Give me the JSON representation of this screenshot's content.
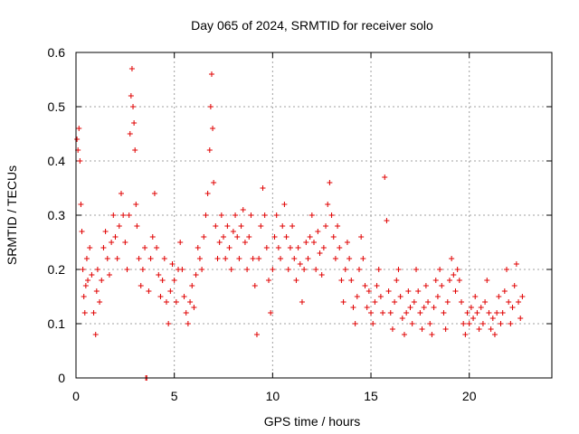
{
  "chart_data": {
    "type": "scatter",
    "title": "Day 065 of 2024, SRMTID for receiver solo",
    "xlabel": "GPS time / hours",
    "ylabel": "SRMTID / TECUs",
    "xlim": [
      0,
      24.2
    ],
    "ylim": [
      0,
      0.6
    ],
    "x_ticks": [
      0,
      5,
      10,
      15,
      20
    ],
    "x_tick_labels": [
      "0",
      "5",
      "10",
      "15",
      "20"
    ],
    "y_ticks": [
      0,
      0.1,
      0.2,
      0.3,
      0.4,
      0.5,
      0.6
    ],
    "y_tick_labels": [
      "0",
      "0.1",
      "0.2",
      "0.3",
      "0.4",
      "0.5",
      "0.6"
    ],
    "grid": true,
    "marker": "+",
    "color": "#e00000",
    "series": [
      {
        "name": "SRMTID",
        "points": [
          [
            0.05,
            0.44
          ],
          [
            0.1,
            0.42
          ],
          [
            0.15,
            0.46
          ],
          [
            0.2,
            0.4
          ],
          [
            0.25,
            0.32
          ],
          [
            0.3,
            0.27
          ],
          [
            0.35,
            0.2
          ],
          [
            0.4,
            0.15
          ],
          [
            0.45,
            0.12
          ],
          [
            0.5,
            0.17
          ],
          [
            0.55,
            0.22
          ],
          [
            0.6,
            0.18
          ],
          [
            0.7,
            0.24
          ],
          [
            0.8,
            0.19
          ],
          [
            0.9,
            0.12
          ],
          [
            1.0,
            0.08
          ],
          [
            1.05,
            0.16
          ],
          [
            1.1,
            0.2
          ],
          [
            1.2,
            0.14
          ],
          [
            1.3,
            0.18
          ],
          [
            1.4,
            0.24
          ],
          [
            1.5,
            0.27
          ],
          [
            1.6,
            0.22
          ],
          [
            1.7,
            0.19
          ],
          [
            1.8,
            0.25
          ],
          [
            1.9,
            0.3
          ],
          [
            2.0,
            0.26
          ],
          [
            2.1,
            0.22
          ],
          [
            2.2,
            0.28
          ],
          [
            2.3,
            0.34
          ],
          [
            2.4,
            0.3
          ],
          [
            2.5,
            0.25
          ],
          [
            2.6,
            0.2
          ],
          [
            2.7,
            0.3
          ],
          [
            2.75,
            0.45
          ],
          [
            2.8,
            0.52
          ],
          [
            2.85,
            0.57
          ],
          [
            2.9,
            0.5
          ],
          [
            2.95,
            0.47
          ],
          [
            3.0,
            0.42
          ],
          [
            3.05,
            0.32
          ],
          [
            3.1,
            0.28
          ],
          [
            3.2,
            0.22
          ],
          [
            3.3,
            0.17
          ],
          [
            3.4,
            0.2
          ],
          [
            3.5,
            0.24
          ],
          [
            3.55,
            0.0
          ],
          [
            3.6,
            0.0
          ],
          [
            3.7,
            0.16
          ],
          [
            3.8,
            0.22
          ],
          [
            3.9,
            0.26
          ],
          [
            4.0,
            0.34
          ],
          [
            4.1,
            0.24
          ],
          [
            4.2,
            0.19
          ],
          [
            4.3,
            0.15
          ],
          [
            4.4,
            0.18
          ],
          [
            4.5,
            0.22
          ],
          [
            4.6,
            0.14
          ],
          [
            4.7,
            0.1
          ],
          [
            4.8,
            0.16
          ],
          [
            4.9,
            0.21
          ],
          [
            5.0,
            0.18
          ],
          [
            5.1,
            0.14
          ],
          [
            5.2,
            0.2
          ],
          [
            5.3,
            0.25
          ],
          [
            5.4,
            0.2
          ],
          [
            5.5,
            0.15
          ],
          [
            5.6,
            0.12
          ],
          [
            5.7,
            0.1
          ],
          [
            5.8,
            0.14
          ],
          [
            5.9,
            0.17
          ],
          [
            6.0,
            0.13
          ],
          [
            6.1,
            0.19
          ],
          [
            6.2,
            0.24
          ],
          [
            6.3,
            0.22
          ],
          [
            6.4,
            0.2
          ],
          [
            6.5,
            0.26
          ],
          [
            6.6,
            0.3
          ],
          [
            6.7,
            0.34
          ],
          [
            6.8,
            0.42
          ],
          [
            6.85,
            0.5
          ],
          [
            6.9,
            0.56
          ],
          [
            6.95,
            0.46
          ],
          [
            7.0,
            0.36
          ],
          [
            7.1,
            0.28
          ],
          [
            7.2,
            0.22
          ],
          [
            7.3,
            0.25
          ],
          [
            7.4,
            0.3
          ],
          [
            7.5,
            0.26
          ],
          [
            7.6,
            0.22
          ],
          [
            7.7,
            0.28
          ],
          [
            7.8,
            0.24
          ],
          [
            7.9,
            0.2
          ],
          [
            8.0,
            0.27
          ],
          [
            8.1,
            0.3
          ],
          [
            8.2,
            0.26
          ],
          [
            8.3,
            0.22
          ],
          [
            8.4,
            0.28
          ],
          [
            8.5,
            0.31
          ],
          [
            8.6,
            0.25
          ],
          [
            8.7,
            0.2
          ],
          [
            8.8,
            0.26
          ],
          [
            8.9,
            0.3
          ],
          [
            9.0,
            0.22
          ],
          [
            9.1,
            0.17
          ],
          [
            9.2,
            0.08
          ],
          [
            9.3,
            0.22
          ],
          [
            9.4,
            0.28
          ],
          [
            9.5,
            0.35
          ],
          [
            9.6,
            0.3
          ],
          [
            9.7,
            0.24
          ],
          [
            9.8,
            0.18
          ],
          [
            9.9,
            0.12
          ],
          [
            10.0,
            0.2
          ],
          [
            10.1,
            0.26
          ],
          [
            10.2,
            0.3
          ],
          [
            10.3,
            0.24
          ],
          [
            10.4,
            0.22
          ],
          [
            10.5,
            0.28
          ],
          [
            10.6,
            0.32
          ],
          [
            10.7,
            0.26
          ],
          [
            10.8,
            0.2
          ],
          [
            10.9,
            0.24
          ],
          [
            11.0,
            0.28
          ],
          [
            11.1,
            0.22
          ],
          [
            11.2,
            0.18
          ],
          [
            11.3,
            0.24
          ],
          [
            11.4,
            0.21
          ],
          [
            11.5,
            0.14
          ],
          [
            11.6,
            0.2
          ],
          [
            11.7,
            0.25
          ],
          [
            11.8,
            0.22
          ],
          [
            11.9,
            0.26
          ],
          [
            12.0,
            0.3
          ],
          [
            12.1,
            0.25
          ],
          [
            12.2,
            0.2
          ],
          [
            12.3,
            0.27
          ],
          [
            12.4,
            0.23
          ],
          [
            12.5,
            0.19
          ],
          [
            12.6,
            0.24
          ],
          [
            12.7,
            0.28
          ],
          [
            12.8,
            0.32
          ],
          [
            12.9,
            0.36
          ],
          [
            13.0,
            0.3
          ],
          [
            13.1,
            0.26
          ],
          [
            13.2,
            0.22
          ],
          [
            13.3,
            0.28
          ],
          [
            13.4,
            0.24
          ],
          [
            13.5,
            0.18
          ],
          [
            13.6,
            0.14
          ],
          [
            13.7,
            0.2
          ],
          [
            13.8,
            0.25
          ],
          [
            13.9,
            0.22
          ],
          [
            14.0,
            0.18
          ],
          [
            14.1,
            0.13
          ],
          [
            14.2,
            0.1
          ],
          [
            14.3,
            0.15
          ],
          [
            14.4,
            0.2
          ],
          [
            14.5,
            0.26
          ],
          [
            14.6,
            0.22
          ],
          [
            14.7,
            0.17
          ],
          [
            14.8,
            0.13
          ],
          [
            14.9,
            0.16
          ],
          [
            15.0,
            0.12
          ],
          [
            15.1,
            0.1
          ],
          [
            15.2,
            0.14
          ],
          [
            15.3,
            0.17
          ],
          [
            15.4,
            0.2
          ],
          [
            15.5,
            0.15
          ],
          [
            15.6,
            0.12
          ],
          [
            15.7,
            0.37
          ],
          [
            15.8,
            0.29
          ],
          [
            15.9,
            0.16
          ],
          [
            16.0,
            0.12
          ],
          [
            16.1,
            0.09
          ],
          [
            16.2,
            0.14
          ],
          [
            16.3,
            0.18
          ],
          [
            16.4,
            0.2
          ],
          [
            16.5,
            0.15
          ],
          [
            16.6,
            0.11
          ],
          [
            16.7,
            0.08
          ],
          [
            16.8,
            0.12
          ],
          [
            16.9,
            0.16
          ],
          [
            17.0,
            0.13
          ],
          [
            17.1,
            0.1
          ],
          [
            17.2,
            0.14
          ],
          [
            17.3,
            0.2
          ],
          [
            17.4,
            0.16
          ],
          [
            17.5,
            0.12
          ],
          [
            17.6,
            0.09
          ],
          [
            17.7,
            0.13
          ],
          [
            17.8,
            0.17
          ],
          [
            17.9,
            0.14
          ],
          [
            18.0,
            0.1
          ],
          [
            18.1,
            0.08
          ],
          [
            18.2,
            0.13
          ],
          [
            18.3,
            0.18
          ],
          [
            18.4,
            0.15
          ],
          [
            18.5,
            0.2
          ],
          [
            18.6,
            0.17
          ],
          [
            18.7,
            0.12
          ],
          [
            18.8,
            0.09
          ],
          [
            18.9,
            0.14
          ],
          [
            19.0,
            0.18
          ],
          [
            19.1,
            0.22
          ],
          [
            19.2,
            0.19
          ],
          [
            19.3,
            0.16
          ],
          [
            19.4,
            0.2
          ],
          [
            19.5,
            0.18
          ],
          [
            19.6,
            0.14
          ],
          [
            19.7,
            0.1
          ],
          [
            19.8,
            0.08
          ],
          [
            19.9,
            0.12
          ],
          [
            20.0,
            0.1
          ],
          [
            20.1,
            0.13
          ],
          [
            20.2,
            0.11
          ],
          [
            20.3,
            0.15
          ],
          [
            20.4,
            0.12
          ],
          [
            20.5,
            0.09
          ],
          [
            20.6,
            0.13
          ],
          [
            20.7,
            0.1
          ],
          [
            20.8,
            0.14
          ],
          [
            20.9,
            0.18
          ],
          [
            21.0,
            0.12
          ],
          [
            21.1,
            0.09
          ],
          [
            21.2,
            0.11
          ],
          [
            21.3,
            0.08
          ],
          [
            21.4,
            0.12
          ],
          [
            21.5,
            0.15
          ],
          [
            21.6,
            0.1
          ],
          [
            21.7,
            0.12
          ],
          [
            21.8,
            0.16
          ],
          [
            21.9,
            0.2
          ],
          [
            22.0,
            0.14
          ],
          [
            22.1,
            0.1
          ],
          [
            22.2,
            0.13
          ],
          [
            22.3,
            0.17
          ],
          [
            22.4,
            0.21
          ],
          [
            22.5,
            0.14
          ],
          [
            22.6,
            0.11
          ],
          [
            22.7,
            0.15
          ]
        ]
      }
    ]
  }
}
